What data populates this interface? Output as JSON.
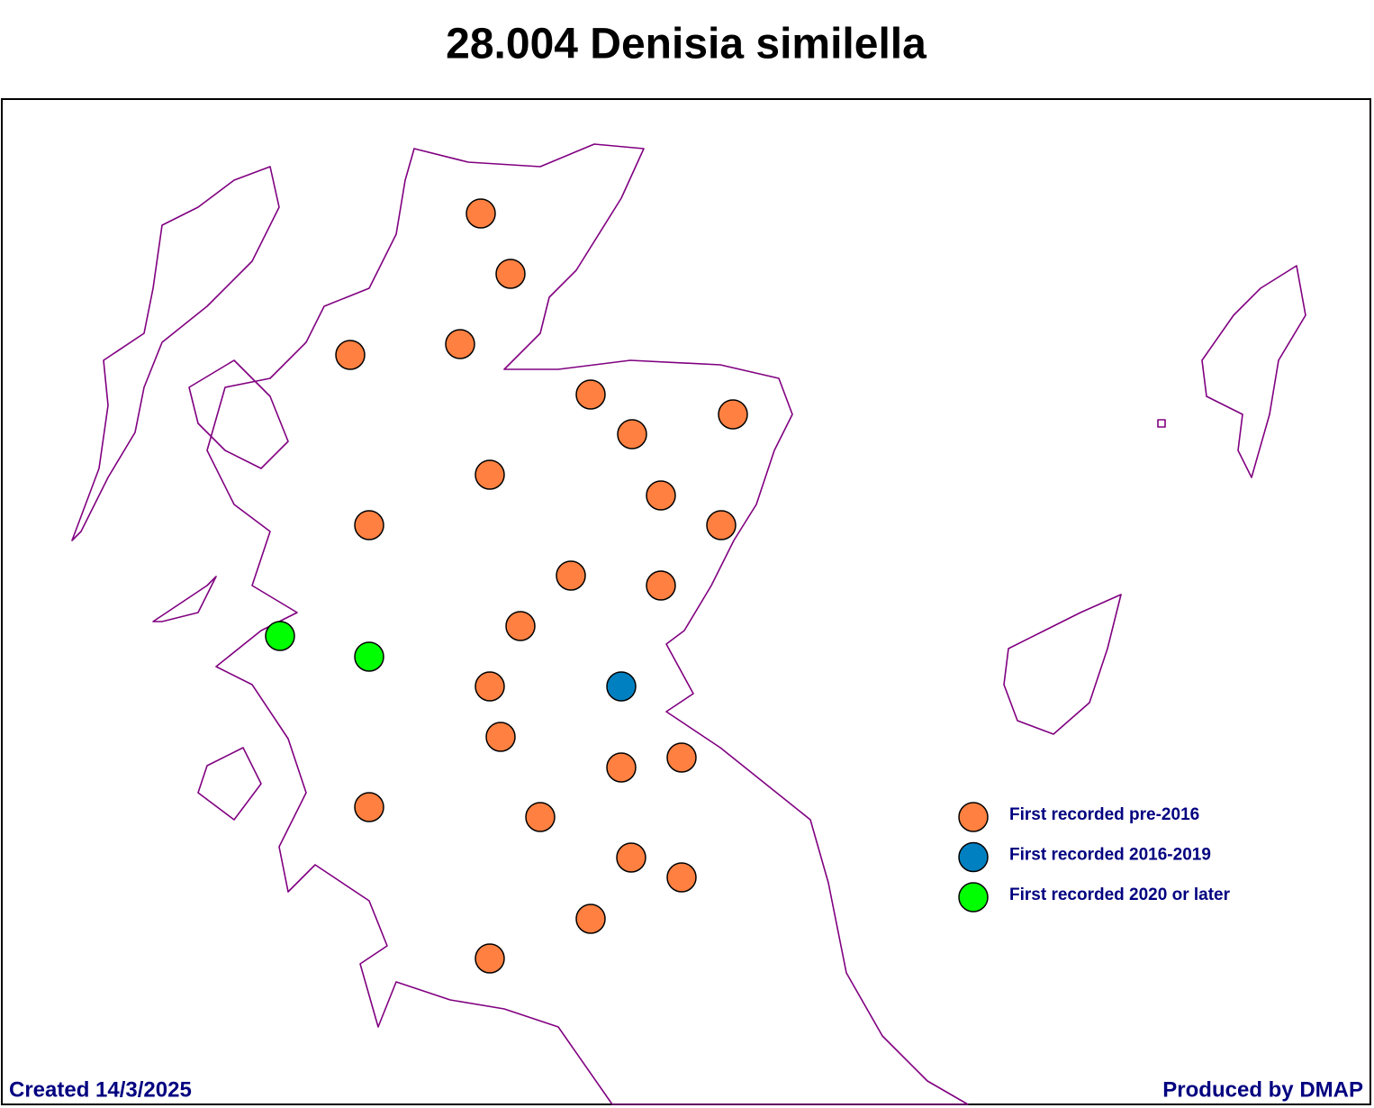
{
  "title": "28.004 Denisia similella",
  "legend": [
    {
      "label": "First recorded pre-2016",
      "color": "#ff8040"
    },
    {
      "label": "First recorded 2016-2019",
      "color": "#0080c0"
    },
    {
      "label": "First recorded 2020 or later",
      "color": "#00ff00"
    }
  ],
  "footer": {
    "created": "Created 14/3/2025",
    "produced": "Produced by DMAP"
  }
}
